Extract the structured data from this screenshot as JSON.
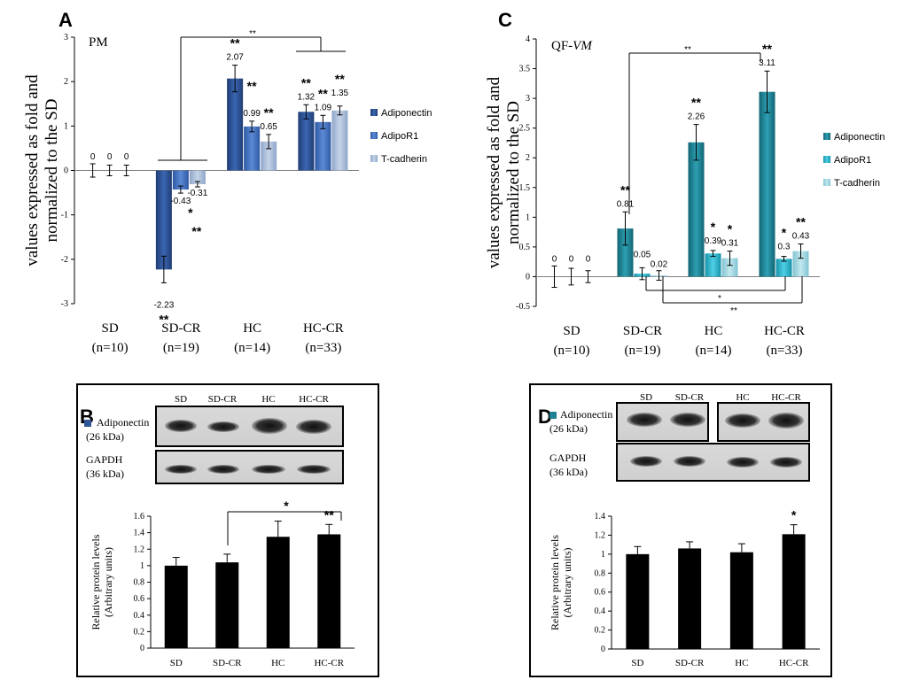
{
  "chart_data": [
    {
      "panel": "A",
      "type": "bar",
      "title": "PM",
      "ylabel_lines": [
        "values expressed as fold and",
        "normalized to the SD"
      ],
      "ylim": [
        -3,
        3
      ],
      "yticks": [
        "-3",
        "-2",
        "-1",
        "0",
        "1",
        "2",
        "3"
      ],
      "categories": [
        "SD",
        "SD-CR",
        "HC",
        "HC-CR"
      ],
      "category_n": [
        "(n=10)",
        "(n=19)",
        "(n=14)",
        "(n=33)"
      ],
      "series": [
        {
          "name": "Adiponectin",
          "color": "#2f5597",
          "values": [
            0,
            -2.23,
            2.07,
            1.32
          ],
          "errors": [
            0.15,
            0.3,
            0.3,
            0.16
          ],
          "labels": [
            "0",
            "-2.23",
            "2.07",
            "1.32"
          ],
          "stars": [
            "",
            "**",
            "**",
            "**"
          ]
        },
        {
          "name": "AdipoR1",
          "color": "#4472c4",
          "values": [
            0,
            -0.43,
            0.99,
            1.09
          ],
          "errors": [
            0.12,
            0.08,
            0.12,
            0.15
          ],
          "labels": [
            "0",
            "-0.43",
            "0.99",
            "1.09"
          ],
          "stars": [
            "",
            "**",
            "**",
            "**"
          ]
        },
        {
          "name": "T-cadherin",
          "color": "#a9bcd8",
          "values": [
            0,
            -0.31,
            0.65,
            1.35
          ],
          "errors": [
            0.12,
            0.06,
            0.16,
            0.1
          ],
          "labels": [
            "0",
            "-0.31",
            "0.65",
            "1.35"
          ],
          "stars": [
            "",
            "*",
            "**",
            "**"
          ]
        }
      ],
      "bracket_stars": [
        "**"
      ]
    },
    {
      "panel": "C",
      "type": "bar",
      "title": "QF-VM",
      "ylabel_lines": [
        "values expressed as fold and",
        "normalized to the SD"
      ],
      "ylim": [
        -0.5,
        4
      ],
      "yticks": [
        "-0.5",
        "0",
        "0.5",
        "1",
        "1.5",
        "2",
        "2.5",
        "3",
        "3.5",
        "4"
      ],
      "categories": [
        "SD",
        "SD-CR",
        "HC",
        "HC-CR"
      ],
      "category_n": [
        "(n=10)",
        "(n=19)",
        "(n=14)",
        "(n=33)"
      ],
      "series": [
        {
          "name": "Adiponectin",
          "color": "#1f8293",
          "values": [
            0,
            0.81,
            2.26,
            3.11
          ],
          "errors": [
            0.18,
            0.28,
            0.3,
            0.35
          ],
          "labels": [
            "0",
            "0.81",
            "2.26",
            "3.11"
          ],
          "stars": [
            "",
            "**",
            "**",
            "**"
          ]
        },
        {
          "name": "AdipoR1",
          "color": "#26b2cc",
          "values": [
            0,
            0.05,
            0.39,
            0.3
          ],
          "errors": [
            0.14,
            0.1,
            0.05,
            0.04
          ],
          "labels": [
            "0",
            "0.05",
            "0.39",
            "0.3"
          ],
          "stars": [
            "",
            "",
            "*",
            "*"
          ]
        },
        {
          "name": "T-cadherin",
          "color": "#9fd5e0",
          "values": [
            0,
            0.02,
            0.31,
            0.43
          ],
          "errors": [
            0.1,
            0.08,
            0.12,
            0.12
          ],
          "labels": [
            "0",
            "0.02",
            "0.31",
            "0.43"
          ],
          "stars": [
            "",
            "",
            "*",
            "**"
          ]
        }
      ],
      "bracket_stars": [
        "**",
        "*",
        "**"
      ]
    },
    {
      "panel": "B",
      "type": "bar",
      "ylabel_lines": [
        "Relative protein levels",
        "(Arbitrary units)"
      ],
      "ylim": [
        0,
        1.6
      ],
      "yticks": [
        "0",
        "0.2",
        "0.4",
        "0.6",
        "0.8",
        "1",
        "1.2",
        "1.4",
        "1.6"
      ],
      "categories": [
        "SD",
        "SD-CR",
        "HC",
        "HC-CR"
      ],
      "values": [
        1.0,
        1.04,
        1.35,
        1.38
      ],
      "errors": [
        0.1,
        0.1,
        0.19,
        0.12
      ],
      "stars": [
        "",
        "",
        "",
        "**"
      ],
      "bracket_stars": [
        "*"
      ]
    },
    {
      "panel": "D",
      "type": "bar",
      "ylabel_lines": [
        "Relative protein levels",
        "(Arbitrary units)"
      ],
      "ylim": [
        0,
        1.4
      ],
      "yticks": [
        "0",
        "0.2",
        "0.4",
        "0.6",
        "0.8",
        "1",
        "1.2",
        "1.4"
      ],
      "categories": [
        "SD",
        "SD-CR",
        "HC",
        "HC-CR"
      ],
      "values": [
        1.0,
        1.06,
        1.02,
        1.21
      ],
      "errors": [
        0.08,
        0.07,
        0.09,
        0.1
      ],
      "stars": [
        "",
        "",
        "",
        "*"
      ]
    }
  ],
  "blots": {
    "B": {
      "lanes": [
        "SD",
        "SD-CR",
        "HC",
        "HC-CR"
      ],
      "legend_color": "#2f5597",
      "rows": [
        {
          "name_lines": [
            "Adiponectin",
            "(26 kDa)"
          ]
        },
        {
          "name_lines": [
            "GAPDH",
            "(36 kDa)"
          ]
        }
      ]
    },
    "D": {
      "lanes": [
        "SD",
        "SD-CR",
        "HC",
        "HC-CR"
      ],
      "legend_color": "#1f8293",
      "rows": [
        {
          "name_lines": [
            "Adiponectin",
            "(26 kDa)"
          ]
        },
        {
          "name_lines": [
            "GAPDH",
            "(36 kDa)"
          ]
        }
      ]
    }
  }
}
